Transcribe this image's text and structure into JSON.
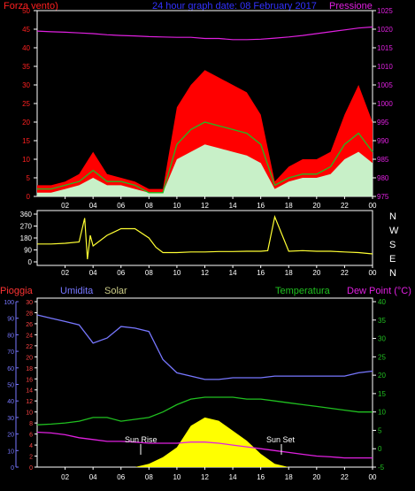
{
  "header": {
    "left_title": "Forza vento)",
    "center_title": "24 hour graph date: 08 February 2017",
    "right_title": "Pressione"
  },
  "wind_panel": {
    "speed_axis_ticks": [
      "0",
      "5",
      "10",
      "15",
      "20",
      "25",
      "30",
      "35",
      "40",
      "45",
      "50"
    ],
    "pressure_axis_ticks": [
      "975",
      "980",
      "985",
      "990",
      "995",
      "1000",
      "1005",
      "1010",
      "1015",
      "1020",
      "1025"
    ],
    "x_ticks": [
      "02",
      "04",
      "06",
      "08",
      "10",
      "12",
      "14",
      "16",
      "18",
      "20",
      "22",
      "00"
    ]
  },
  "direction_panel": {
    "deg_ticks": [
      "360",
      "270",
      "180",
      "90",
      "0"
    ],
    "compass_labels": [
      "N",
      "W",
      "S",
      "E",
      "N"
    ],
    "x_ticks": [
      "02",
      "04",
      "06",
      "08",
      "10",
      "12",
      "14",
      "16",
      "18",
      "20",
      "22",
      "00"
    ]
  },
  "bottom_panel": {
    "legend": {
      "rain": "Pioggia",
      "humidity": "Umidita",
      "solar": "Solar",
      "temperature": "Temperatura",
      "dewpoint": "Dew Point (°C)"
    },
    "humidity_ticks": [
      "0",
      "10",
      "20",
      "30",
      "40",
      "50",
      "60",
      "70",
      "80",
      "90",
      "100"
    ],
    "rain_ticks": [
      "0",
      "2",
      "4",
      "6",
      "8",
      "10",
      "12",
      "14",
      "16",
      "18",
      "20",
      "22",
      "24",
      "26",
      "28",
      "30"
    ],
    "temp_ticks": [
      "-5",
      "0",
      "5",
      "10",
      "15",
      "20",
      "25",
      "30",
      "35",
      "40"
    ],
    "x_ticks": [
      "02",
      "04",
      "06",
      "08",
      "10",
      "12",
      "14",
      "16",
      "18",
      "20",
      "22",
      "00"
    ],
    "sun_rise_label": "Sun Rise",
    "sun_set_label": "Sun Set"
  },
  "colors": {
    "gust": "#ff0000",
    "avg": "#22bb22",
    "speed": "#c8f0c8",
    "pressure": "#e020e0",
    "direction": "#ffff33",
    "humidity": "#7777ff",
    "temperature": "#20c020",
    "dewpoint": "#e020e0",
    "solar": "#ffff00",
    "rain_axis": "#ff4444",
    "axis": "#ffffff"
  },
  "chart_data": [
    {
      "type": "line",
      "title": "24 hour graph date: 08 February 2017",
      "x_unit": "hour",
      "x": [
        0,
        1,
        2,
        3,
        4,
        5,
        6,
        7,
        8,
        9,
        10,
        11,
        12,
        13,
        14,
        15,
        16,
        17,
        18,
        19,
        20,
        21,
        22,
        23,
        24
      ],
      "series": [
        {
          "name": "Forza vento)",
          "axis": "left",
          "ylim": [
            0,
            50
          ],
          "values": [
            3,
            3,
            4,
            6,
            12,
            6,
            5,
            4,
            2,
            2,
            24,
            30,
            34,
            32,
            30,
            28,
            22,
            4,
            8,
            10,
            10,
            12,
            22,
            30,
            20
          ]
        },
        {
          "axis": "left",
          "ylim": [
            0,
            50
          ],
          "values": [
            2,
            2,
            3,
            4,
            7,
            4,
            4,
            3,
            1,
            1,
            14,
            18,
            20,
            19,
            18,
            17,
            14,
            3,
            5,
            6,
            6,
            8,
            14,
            17,
            12
          ]
        },
        {
          "axis": "left",
          "ylim": [
            0,
            50
          ],
          "values": [
            1,
            1,
            2,
            3,
            5,
            3,
            3,
            2,
            1,
            1,
            10,
            12,
            14,
            13,
            12,
            11,
            9,
            2,
            4,
            5,
            5,
            6,
            10,
            12,
            9
          ]
        },
        {
          "name": "Pressione",
          "axis": "right",
          "ylim": [
            975,
            1025
          ],
          "values": [
            1019.5,
            1019.3,
            1019.2,
            1019,
            1018.8,
            1018.5,
            1018.3,
            1018.2,
            1018,
            1017.9,
            1017.8,
            1017.8,
            1017.5,
            1017.5,
            1017.2,
            1017.2,
            1017.3,
            1017.6,
            1017.9,
            1018.3,
            1018.8,
            1019.3,
            1019.8,
            1020.3,
            1020.6
          ]
        }
      ]
    },
    {
      "type": "line",
      "x_unit": "hour",
      "ylim": [
        0,
        360
      ],
      "x": [
        0,
        1,
        2,
        3,
        3.4,
        3.6,
        3.8,
        4,
        5,
        6,
        7,
        8,
        8.5,
        9,
        10,
        11,
        12,
        13,
        14,
        15,
        16,
        16.5,
        17,
        17.5,
        18,
        19,
        20,
        21,
        22,
        23,
        24
      ],
      "values": [
        135,
        135,
        140,
        150,
        330,
        20,
        200,
        120,
        200,
        250,
        250,
        180,
        110,
        70,
        70,
        75,
        75,
        78,
        78,
        80,
        80,
        85,
        340,
        210,
        80,
        85,
        80,
        80,
        75,
        70,
        60
      ]
    },
    {
      "type": "line",
      "x_unit": "hour",
      "x": [
        0,
        1,
        2,
        3,
        4,
        5,
        6,
        7,
        8,
        9,
        10,
        11,
        12,
        13,
        14,
        15,
        16,
        17,
        18,
        19,
        20,
        21,
        22,
        23,
        24
      ],
      "series": [
        {
          "name": "Umidita",
          "axis": "humidity",
          "ylim": [
            0,
            100
          ],
          "values": [
            92,
            90,
            88,
            86,
            75,
            78,
            85,
            84,
            82,
            65,
            57,
            55,
            53,
            53,
            54,
            54,
            54,
            55,
            55,
            55,
            55,
            55,
            55,
            57,
            58
          ]
        },
        {
          "name": "Temperatura",
          "axis": "temperature",
          "ylim": [
            -5,
            40
          ],
          "values": [
            6.5,
            6.7,
            7,
            7.5,
            8.5,
            8.5,
            7.5,
            8,
            8.5,
            10,
            12,
            13.5,
            14,
            14,
            14,
            13.5,
            13.5,
            13,
            12.5,
            12,
            11.5,
            11,
            10.5,
            10,
            10
          ]
        },
        {
          "name": "Dew Point (°C)",
          "axis": "temperature",
          "ylim": [
            -5,
            40
          ],
          "values": [
            4.5,
            4.3,
            3.8,
            3,
            2.5,
            2,
            2,
            1.8,
            1.5,
            1.5,
            1.5,
            1.8,
            1.8,
            1.5,
            1,
            0.5,
            0,
            -0.5,
            -1,
            -1.5,
            -2,
            -2.2,
            -2.5,
            -2.5,
            -2.5
          ]
        },
        {
          "name": "Solar",
          "axis": "humidity",
          "ylim": [
            0,
            100
          ],
          "values": [
            0,
            0,
            0,
            0,
            0,
            0,
            0,
            0,
            2,
            6,
            12,
            25,
            30,
            28,
            22,
            16,
            8,
            2,
            0,
            0,
            0,
            0,
            0,
            0,
            0
          ]
        }
      ]
    }
  ]
}
